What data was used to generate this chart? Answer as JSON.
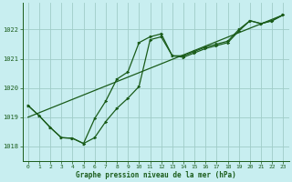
{
  "title": "Graphe pression niveau de la mer (hPa)",
  "bg_color": "#c8eef0",
  "grid_color": "#a0ccc8",
  "line_color": "#1a5c1a",
  "marker_color": "#1a5c1a",
  "xlim": [
    -0.5,
    23.5
  ],
  "ylim": [
    1017.5,
    1022.9
  ],
  "yticks": [
    1018,
    1019,
    1020,
    1021,
    1022
  ],
  "xticks": [
    0,
    1,
    2,
    3,
    4,
    5,
    6,
    7,
    8,
    9,
    10,
    11,
    12,
    13,
    14,
    15,
    16,
    17,
    18,
    19,
    20,
    21,
    22,
    23
  ],
  "series1_x": [
    0,
    1,
    2,
    3,
    4,
    5,
    6,
    7,
    8,
    9,
    10,
    11,
    12,
    13,
    14,
    15,
    16,
    17,
    18,
    19,
    20,
    21,
    22,
    23
  ],
  "series1_y": [
    1019.4,
    1019.05,
    1018.65,
    1018.3,
    1018.28,
    1018.1,
    1018.3,
    1018.85,
    1019.3,
    1019.65,
    1020.05,
    1021.65,
    1021.75,
    1021.1,
    1021.05,
    1021.2,
    1021.35,
    1021.45,
    1021.55,
    1021.95,
    1022.3,
    1022.2,
    1022.3,
    1022.5
  ],
  "series2_x": [
    0,
    1,
    2,
    3,
    4,
    5,
    6,
    7,
    8,
    9,
    10,
    11,
    12,
    13,
    14,
    15,
    16,
    17,
    18,
    19,
    20,
    21,
    22,
    23
  ],
  "series2_y": [
    1019.4,
    1019.05,
    1018.65,
    1018.3,
    1018.28,
    1018.1,
    1018.95,
    1019.55,
    1020.3,
    1020.55,
    1021.55,
    1021.75,
    1021.85,
    1021.1,
    1021.1,
    1021.25,
    1021.4,
    1021.5,
    1021.6,
    1022.0,
    1022.3,
    1022.2,
    1022.3,
    1022.5
  ],
  "trend_x": [
    0,
    23
  ],
  "trend_y": [
    1019.0,
    1022.5
  ]
}
